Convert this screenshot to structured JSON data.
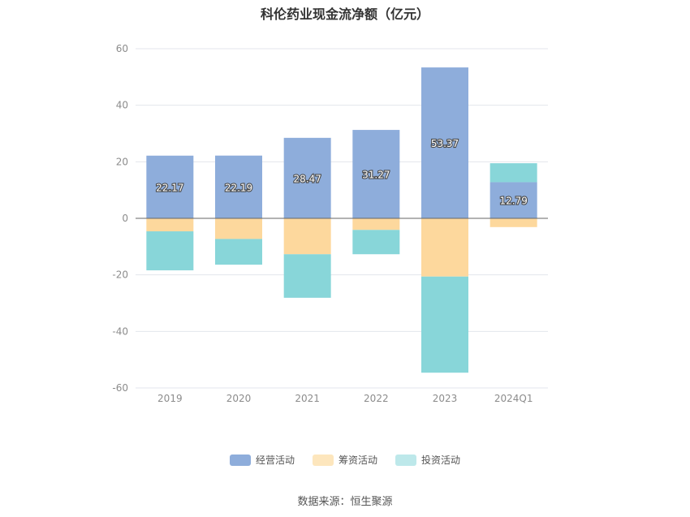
{
  "title": "科伦药业现金流净额（亿元）",
  "source": "数据来源：恒生聚源",
  "chart_data": {
    "type": "bar",
    "stacked": true,
    "title": "科伦药业现金流净额（亿元）",
    "categories": [
      "2019",
      "2020",
      "2021",
      "2022",
      "2023",
      "2024Q1"
    ],
    "ylim": [
      -60,
      60
    ],
    "yticks": [
      60,
      40,
      20,
      0,
      -20,
      -40,
      -60
    ],
    "grid": true,
    "legend_position": "bottom",
    "series": [
      {
        "name": "经营活动",
        "color": "#8EADDB",
        "values": [
          22.17,
          22.19,
          28.47,
          31.27,
          53.37,
          12.79
        ],
        "labels": [
          "22.17",
          "22.19",
          "28.47",
          "31.27",
          "53.37",
          "12.79"
        ]
      },
      {
        "name": "筹资活动",
        "color": "#FDD89D",
        "values": [
          -4.6,
          -7.3,
          -12.7,
          -4.1,
          -20.6,
          -3.1
        ]
      },
      {
        "name": "投资活动",
        "color": "#88D6D9",
        "values": [
          -13.8,
          -9.1,
          -15.4,
          -8.6,
          -34.0,
          6.7
        ]
      }
    ]
  }
}
